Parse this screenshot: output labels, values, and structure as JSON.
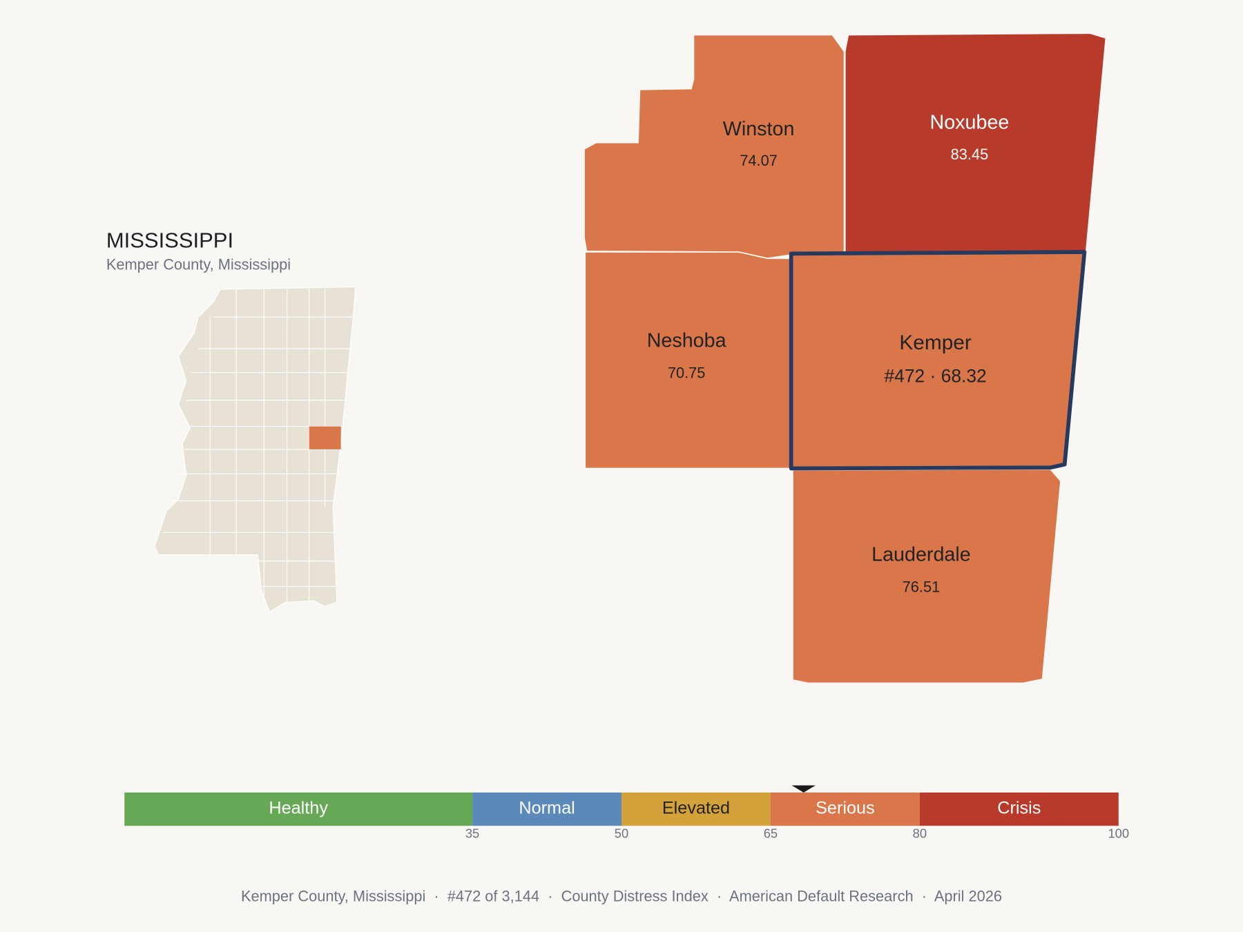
{
  "state": {
    "name": "MISSISSIPPI",
    "subtitle": "Kemper County, Mississippi",
    "fill": "#e8e2d6",
    "highlight": "#d9764a"
  },
  "counties": [
    {
      "name": "Winston",
      "value": 74.07,
      "color": "#d9764a",
      "label_color": "#222222"
    },
    {
      "name": "Noxubee",
      "value": 83.45,
      "color": "#b83a2b",
      "label_color": "#ffffff"
    },
    {
      "name": "Neshoba",
      "value": 70.75,
      "color": "#d9764a",
      "label_color": "#222222"
    },
    {
      "name": "Kemper",
      "value": 68.32,
      "value_label": "#472 · 68.32",
      "color": "#d9764a",
      "label_color": "#222222",
      "outline": "#253a5e"
    },
    {
      "name": "Lauderdale",
      "value": 76.51,
      "color": "#d9764a",
      "label_color": "#222222"
    }
  ],
  "scale": {
    "range": [
      0,
      100
    ],
    "ticks": [
      35,
      50,
      65,
      80,
      100
    ],
    "bands": [
      {
        "label": "Healthy",
        "color": "#67a857",
        "text_color": "#ffffff"
      },
      {
        "label": "Normal",
        "color": "#5b8aba",
        "text_color": "#ffffff"
      },
      {
        "label": "Elevated",
        "color": "#d4a23a",
        "text_color": "#222222"
      },
      {
        "label": "Serious",
        "color": "#d9764a",
        "text_color": "#ffffff"
      },
      {
        "label": "Crisis",
        "color": "#b83a2b",
        "text_color": "#ffffff"
      }
    ]
  },
  "footer": "Kemper County, Mississippi  ·  #472 of 3,144  ·  County Distress Index  ·  American Default Research  ·  April 2026"
}
